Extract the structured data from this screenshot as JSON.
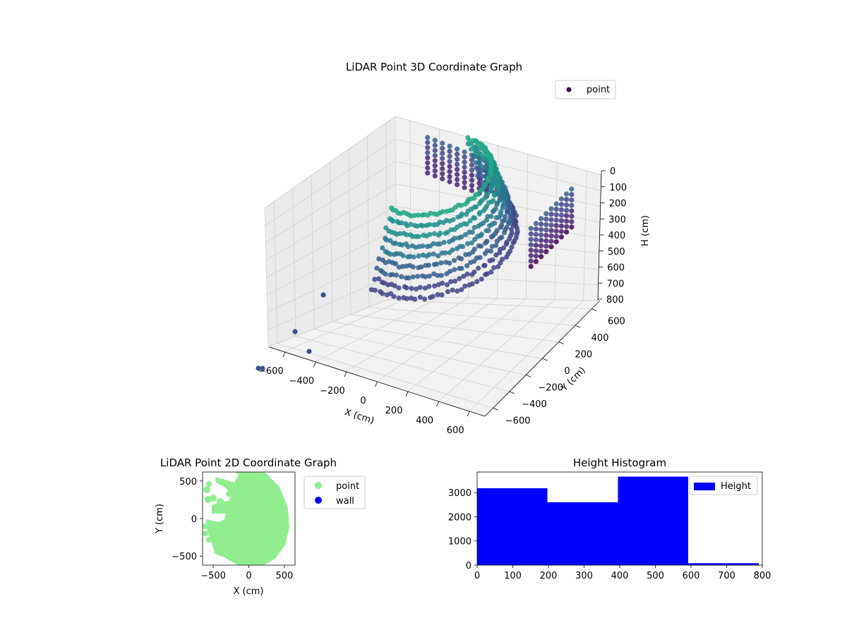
{
  "chart_data": [
    {
      "type": "scatter3d",
      "title": "LiDAR Point 3D Coordinate Graph",
      "xlabel": "X (cm)",
      "ylabel": "Y (cm)",
      "zlabel": "H (cm)",
      "x_ticks": [
        "−600",
        "−400",
        "−200",
        "0",
        "200",
        "400",
        "600"
      ],
      "y_ticks": [
        "−600",
        "−400",
        "−200",
        "0",
        "200",
        "400",
        "600"
      ],
      "z_ticks": [
        "0",
        "100",
        "200",
        "300",
        "400",
        "500",
        "600",
        "700",
        "800"
      ],
      "xlim": [
        -600,
        600
      ],
      "ylim": [
        -600,
        600
      ],
      "zlim": [
        0,
        800
      ],
      "z_inverted": true,
      "colormap": "viridis",
      "legend": [
        "point"
      ],
      "legend_position": "top-right",
      "grid": true
    },
    {
      "type": "scatter",
      "title": "LiDAR Point 2D Coordinate Graph",
      "xlabel": "X (cm)",
      "ylabel": "Y (cm)",
      "x_ticks": [
        "−500",
        "0",
        "500"
      ],
      "y_ticks": [
        "500",
        "0",
        "−500"
      ],
      "xlim": [
        -650,
        650
      ],
      "ylim": [
        -620,
        620
      ],
      "series": [
        {
          "name": "point",
          "color": "#90ee90"
        },
        {
          "name": "wall",
          "color": "#0000ff"
        }
      ],
      "legend_position": "outside-right"
    },
    {
      "type": "bar",
      "title": "Height Histogram",
      "bins": [
        [
          0,
          197
        ],
        [
          197,
          395
        ],
        [
          395,
          592
        ],
        [
          592,
          790
        ]
      ],
      "values": [
        3180,
        2600,
        3660,
        80
      ],
      "xlim": [
        0,
        800
      ],
      "ylim": [
        0,
        3850
      ],
      "x_ticks": [
        "0",
        "100",
        "200",
        "300",
        "400",
        "500",
        "600",
        "700",
        "800"
      ],
      "y_ticks": [
        "0",
        "1000",
        "2000",
        "3000"
      ],
      "color": "#0000ff",
      "legend": [
        "Height"
      ],
      "legend_position": "top-right"
    }
  ]
}
